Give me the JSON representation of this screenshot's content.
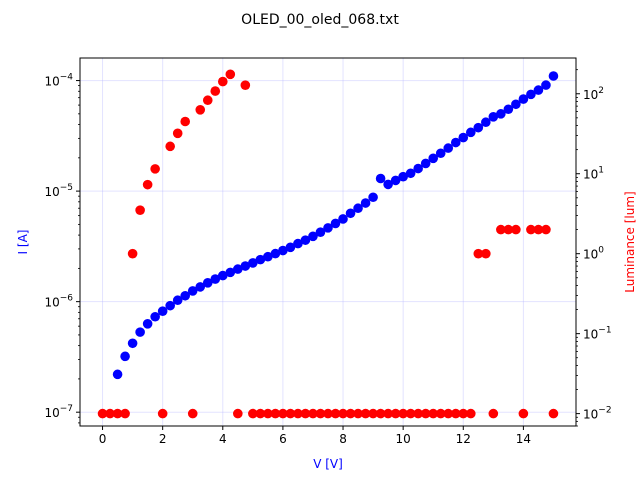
{
  "chart_data": {
    "type": "scatter",
    "title": "OLED_00_oled_068.txt",
    "xlabel": "V [V]",
    "ylabel_left": "I [A]",
    "ylabel_right": "Luminance [lum]",
    "xlim": [
      -0.75,
      15.75
    ],
    "ylim_left": [
      7.5e-08,
      0.00016
    ],
    "ylim_right": [
      0.007,
      280
    ],
    "yscale_left": "log",
    "yscale_right": "log",
    "grid": true,
    "x_ticks": [
      0,
      2,
      4,
      6,
      8,
      10,
      12,
      14
    ],
    "x_tick_labels": [
      "0",
      "2",
      "4",
      "6",
      "8",
      "10",
      "12",
      "14"
    ],
    "y_left_ticks": [
      {
        "value": 1e-07,
        "base": "10",
        "exp": "−7"
      },
      {
        "value": 1e-06,
        "base": "10",
        "exp": "−6"
      },
      {
        "value": 1e-05,
        "base": "10",
        "exp": "−5"
      },
      {
        "value": 0.0001,
        "base": "10",
        "exp": "−4"
      }
    ],
    "y_right_ticks": [
      {
        "value": 0.01,
        "base": "10",
        "exp": "−2"
      },
      {
        "value": 0.1,
        "base": "10",
        "exp": "−1"
      },
      {
        "value": 1,
        "base": "10",
        "exp": "0"
      },
      {
        "value": 10,
        "base": "10",
        "exp": "1"
      },
      {
        "value": 100,
        "base": "10",
        "exp": "2"
      }
    ],
    "colors": {
      "current": "#0000ff",
      "luminance": "#ff0000",
      "grid": "#b0b0ff"
    },
    "series": [
      {
        "axis": "left",
        "color": "#0000ff",
        "x": [
          0.5,
          0.75,
          1.0,
          1.25,
          1.5,
          1.75,
          2.0,
          2.25,
          2.5,
          2.75,
          3.0,
          3.25,
          3.5,
          3.75,
          4.0,
          4.25,
          4.5,
          4.75,
          5.0,
          5.25,
          5.5,
          5.75,
          6.0,
          6.25,
          6.5,
          6.75,
          7.0,
          7.25,
          7.5,
          7.75,
          8.0,
          8.25,
          8.5,
          8.75,
          9.0,
          9.25,
          9.5,
          9.75,
          10.0,
          10.25,
          10.5,
          10.75,
          11.0,
          11.25,
          11.5,
          11.75,
          12.0,
          12.25,
          12.5,
          12.75,
          13.0,
          13.25,
          13.5,
          13.75,
          14.0,
          14.25,
          14.5,
          14.75,
          15.0
        ],
        "y": [
          2.2e-07,
          3.2e-07,
          4.2e-07,
          5.3e-07,
          6.3e-07,
          7.3e-07,
          8.2e-07,
          9.2e-07,
          1.03e-06,
          1.13e-06,
          1.25e-06,
          1.36e-06,
          1.48e-06,
          1.6e-06,
          1.72e-06,
          1.84e-06,
          1.97e-06,
          2.1e-06,
          2.24e-06,
          2.4e-06,
          2.55e-06,
          2.72e-06,
          2.9e-06,
          3.1e-06,
          3.35e-06,
          3.6e-06,
          3.9e-06,
          4.25e-06,
          4.65e-06,
          5.1e-06,
          5.6e-06,
          6.3e-06,
          7e-06,
          7.8e-06,
          8.8e-06,
          1.3e-05,
          1.15e-05,
          1.25e-05,
          1.35e-05,
          1.45e-05,
          1.6e-05,
          1.78e-05,
          1.98e-05,
          2.2e-05,
          2.45e-05,
          2.75e-05,
          3.05e-05,
          3.4e-05,
          3.75e-05,
          4.2e-05,
          4.7e-05,
          5e-05,
          5.5e-05,
          6.1e-05,
          6.8e-05,
          7.5e-05,
          8.2e-05,
          9.1e-05,
          0.00011
        ]
      },
      {
        "axis": "right",
        "color": "#ff0000",
        "x": [
          0.0,
          0.25,
          0.5,
          0.75,
          1.0,
          1.25,
          1.5,
          1.75,
          2.0,
          2.25,
          2.5,
          2.75,
          3.0,
          3.25,
          3.5,
          3.75,
          4.0,
          4.25,
          4.5,
          4.75,
          5.0,
          5.25,
          5.5,
          5.75,
          6.0,
          6.25,
          6.5,
          6.75,
          7.0,
          7.25,
          7.5,
          7.75,
          8.0,
          8.25,
          8.5,
          8.75,
          9.0,
          9.25,
          9.5,
          9.75,
          10.0,
          10.25,
          10.5,
          10.75,
          11.0,
          11.25,
          11.5,
          11.75,
          12.0,
          12.25,
          12.5,
          12.75,
          13.0,
          13.25,
          13.5,
          13.75,
          14.0,
          14.25,
          14.5,
          14.75,
          15.0
        ],
        "y": [
          0.01,
          0.01,
          0.01,
          0.01,
          1.0,
          3.5,
          7.3,
          11.5,
          0.01,
          22.0,
          32.0,
          45.0,
          0.01,
          63.0,
          83.0,
          108.0,
          142.0,
          175.0,
          0.01,
          128.0,
          0.01,
          0.01,
          0.01,
          0.01,
          0.01,
          0.01,
          0.01,
          0.01,
          0.01,
          0.01,
          0.01,
          0.01,
          0.01,
          0.01,
          0.01,
          0.01,
          0.01,
          0.01,
          0.01,
          0.01,
          0.01,
          0.01,
          0.01,
          0.01,
          0.01,
          0.01,
          0.01,
          0.01,
          0.01,
          0.01,
          1.0,
          1.0,
          0.01,
          2.0,
          2.0,
          2.0,
          0.01,
          2.0,
          2.0,
          2.0,
          0.01
        ]
      }
    ]
  }
}
